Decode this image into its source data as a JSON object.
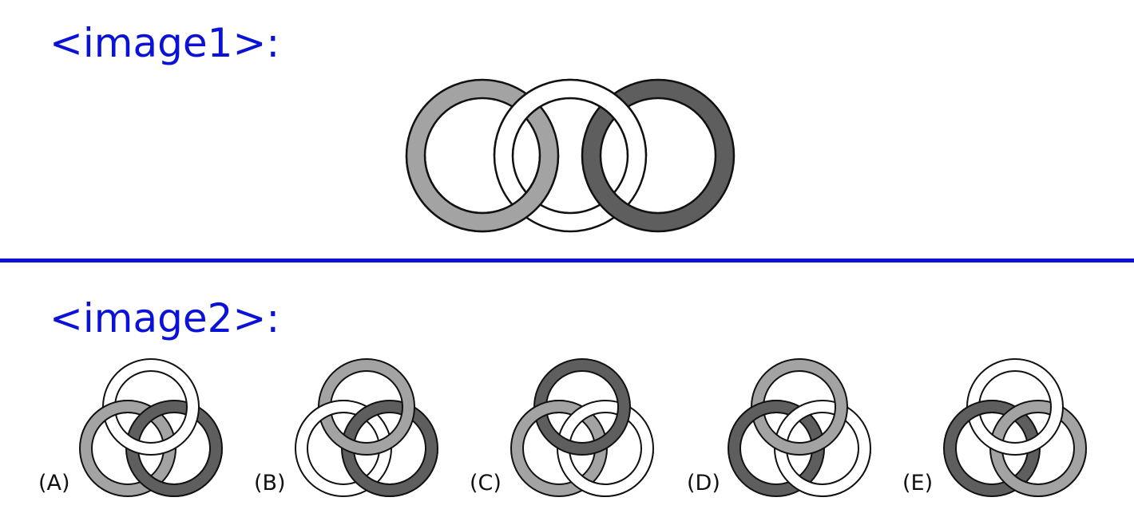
{
  "colors": {
    "heading": "#0b12d8",
    "divider": "#0b12d8",
    "outline": "#111111",
    "light_gray": "#a3a3a3",
    "dark_gray": "#5e5e5e",
    "white": "#ffffff"
  },
  "image1": {
    "label": "<image1>:",
    "rings": [
      "light_gray",
      "white",
      "dark_gray"
    ]
  },
  "image2": {
    "label": "<image2>:",
    "options": [
      {
        "label": "(A)",
        "top": "white",
        "left": "light_gray",
        "right": "dark_gray"
      },
      {
        "label": "(B)",
        "top": "light_gray",
        "left": "white",
        "right": "dark_gray"
      },
      {
        "label": "(C)",
        "top": "dark_gray",
        "left": "light_gray",
        "right": "white"
      },
      {
        "label": "(D)",
        "top": "light_gray",
        "left": "dark_gray",
        "right": "white"
      },
      {
        "label": "(E)",
        "top": "white",
        "left": "dark_gray",
        "right": "light_gray"
      }
    ]
  }
}
